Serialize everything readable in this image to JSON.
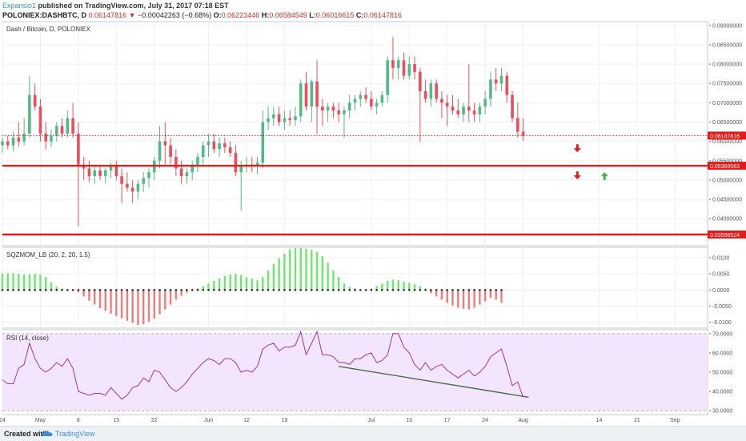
{
  "header": {
    "author": "Expansio1",
    "published": "published on TradingView.com, July 31, 2017 07:18 EST",
    "symbol": "POLONIEX:DASHBTC, D",
    "last": "0.06147816",
    "change": "−0.00042263 (−0.68%)",
    "o_label": "O:",
    "o": "0.06223446",
    "h_label": "H:",
    "h": "0.06584549",
    "l_label": "L:",
    "l": "0.06016615",
    "c_label": "C:",
    "c": "0.06147816"
  },
  "footer": {
    "created": "Created with",
    "brand": "TradingView"
  },
  "colors": {
    "up": "#53b987",
    "down": "#eb4d5c",
    "level": "#e31b1b",
    "rsi_fill": "#f3e5fc",
    "rsi_line": "#9c3a9c",
    "trend": "#4c6a4c",
    "mom_up": "#6ee76e",
    "mom_down": "#f07b7b"
  },
  "chart_data": [
    {
      "type": "candlestick",
      "title": "Dash / Bitcoin, D, POLONIEX",
      "ylim": [
        0.033,
        0.091
      ],
      "y_ticks": [
        "0.09000000",
        "0.08500000",
        "0.08000000",
        "0.07500000",
        "0.07000000",
        "0.06500000",
        "0.06000000",
        "0.05500000",
        "0.05000000",
        "0.04500000",
        "0.04000000"
      ],
      "y_tick_values": [
        0.09,
        0.085,
        0.08,
        0.075,
        0.07,
        0.065,
        0.06,
        0.055,
        0.05,
        0.045,
        0.04
      ],
      "x_ticks": [
        "24",
        "May",
        "8",
        "15",
        "22",
        "Jun",
        "12",
        "19",
        "Jul",
        "10",
        "17",
        "24",
        "Aug",
        "14",
        "21",
        "Sep"
      ],
      "x_tick_days": [
        0,
        7,
        14,
        21,
        28,
        38,
        45,
        52,
        68,
        75,
        82,
        89,
        96,
        110,
        117,
        124
      ],
      "x_range_days": [
        0,
        130
      ],
      "candles": [
        {
          "o": 0.059,
          "h": 0.061,
          "l": 0.057,
          "c": 0.06
        },
        {
          "o": 0.06,
          "h": 0.0615,
          "l": 0.058,
          "c": 0.059
        },
        {
          "o": 0.059,
          "h": 0.0625,
          "l": 0.0575,
          "c": 0.061
        },
        {
          "o": 0.061,
          "h": 0.065,
          "l": 0.0585,
          "c": 0.06
        },
        {
          "o": 0.06,
          "h": 0.066,
          "l": 0.059,
          "c": 0.062
        },
        {
          "o": 0.062,
          "h": 0.077,
          "l": 0.061,
          "c": 0.072
        },
        {
          "o": 0.072,
          "h": 0.075,
          "l": 0.068,
          "c": 0.069
        },
        {
          "o": 0.069,
          "h": 0.071,
          "l": 0.06,
          "c": 0.062
        },
        {
          "o": 0.062,
          "h": 0.065,
          "l": 0.058,
          "c": 0.06
        },
        {
          "o": 0.06,
          "h": 0.063,
          "l": 0.0585,
          "c": 0.0615
        },
        {
          "o": 0.0615,
          "h": 0.065,
          "l": 0.06,
          "c": 0.064
        },
        {
          "o": 0.064,
          "h": 0.066,
          "l": 0.061,
          "c": 0.062
        },
        {
          "o": 0.062,
          "h": 0.068,
          "l": 0.061,
          "c": 0.066
        },
        {
          "o": 0.066,
          "h": 0.07,
          "l": 0.061,
          "c": 0.062
        },
        {
          "o": 0.062,
          "h": 0.065,
          "l": 0.038,
          "c": 0.054
        },
        {
          "o": 0.054,
          "h": 0.056,
          "l": 0.05,
          "c": 0.053
        },
        {
          "o": 0.053,
          "h": 0.055,
          "l": 0.0495,
          "c": 0.051
        },
        {
          "o": 0.051,
          "h": 0.0535,
          "l": 0.049,
          "c": 0.0525
        },
        {
          "o": 0.0525,
          "h": 0.054,
          "l": 0.05,
          "c": 0.051
        },
        {
          "o": 0.051,
          "h": 0.053,
          "l": 0.049,
          "c": 0.0525
        },
        {
          "o": 0.0525,
          "h": 0.0545,
          "l": 0.0505,
          "c": 0.0535
        },
        {
          "o": 0.0535,
          "h": 0.055,
          "l": 0.05,
          "c": 0.051
        },
        {
          "o": 0.051,
          "h": 0.053,
          "l": 0.044,
          "c": 0.049
        },
        {
          "o": 0.049,
          "h": 0.052,
          "l": 0.047,
          "c": 0.048
        },
        {
          "o": 0.048,
          "h": 0.05,
          "l": 0.044,
          "c": 0.047
        },
        {
          "o": 0.047,
          "h": 0.05,
          "l": 0.045,
          "c": 0.049
        },
        {
          "o": 0.049,
          "h": 0.052,
          "l": 0.047,
          "c": 0.0505
        },
        {
          "o": 0.0505,
          "h": 0.053,
          "l": 0.048,
          "c": 0.052
        },
        {
          "o": 0.052,
          "h": 0.056,
          "l": 0.05,
          "c": 0.055
        },
        {
          "o": 0.055,
          "h": 0.064,
          "l": 0.053,
          "c": 0.06
        },
        {
          "o": 0.06,
          "h": 0.065,
          "l": 0.054,
          "c": 0.059
        },
        {
          "o": 0.059,
          "h": 0.061,
          "l": 0.054,
          "c": 0.056
        },
        {
          "o": 0.056,
          "h": 0.058,
          "l": 0.051,
          "c": 0.053
        },
        {
          "o": 0.053,
          "h": 0.055,
          "l": 0.049,
          "c": 0.051
        },
        {
          "o": 0.051,
          "h": 0.053,
          "l": 0.049,
          "c": 0.052
        },
        {
          "o": 0.052,
          "h": 0.055,
          "l": 0.05,
          "c": 0.054
        },
        {
          "o": 0.054,
          "h": 0.057,
          "l": 0.052,
          "c": 0.056
        },
        {
          "o": 0.056,
          "h": 0.06,
          "l": 0.054,
          "c": 0.059
        },
        {
          "o": 0.059,
          "h": 0.062,
          "l": 0.056,
          "c": 0.06
        },
        {
          "o": 0.06,
          "h": 0.062,
          "l": 0.057,
          "c": 0.058
        },
        {
          "o": 0.058,
          "h": 0.061,
          "l": 0.056,
          "c": 0.0595
        },
        {
          "o": 0.0595,
          "h": 0.061,
          "l": 0.057,
          "c": 0.0585
        },
        {
          "o": 0.0585,
          "h": 0.06,
          "l": 0.056,
          "c": 0.057
        },
        {
          "o": 0.057,
          "h": 0.059,
          "l": 0.051,
          "c": 0.052
        },
        {
          "o": 0.052,
          "h": 0.055,
          "l": 0.042,
          "c": 0.0535
        },
        {
          "o": 0.0535,
          "h": 0.056,
          "l": 0.052,
          "c": 0.054
        },
        {
          "o": 0.054,
          "h": 0.056,
          "l": 0.052,
          "c": 0.0535
        },
        {
          "o": 0.0535,
          "h": 0.056,
          "l": 0.0515,
          "c": 0.0545
        },
        {
          "o": 0.0545,
          "h": 0.068,
          "l": 0.053,
          "c": 0.065
        },
        {
          "o": 0.065,
          "h": 0.069,
          "l": 0.063,
          "c": 0.066
        },
        {
          "o": 0.066,
          "h": 0.069,
          "l": 0.064,
          "c": 0.067
        },
        {
          "o": 0.067,
          "h": 0.069,
          "l": 0.064,
          "c": 0.065
        },
        {
          "o": 0.065,
          "h": 0.068,
          "l": 0.063,
          "c": 0.066
        },
        {
          "o": 0.066,
          "h": 0.068,
          "l": 0.064,
          "c": 0.0655
        },
        {
          "o": 0.0655,
          "h": 0.069,
          "l": 0.064,
          "c": 0.0665
        },
        {
          "o": 0.0665,
          "h": 0.076,
          "l": 0.065,
          "c": 0.075
        },
        {
          "o": 0.075,
          "h": 0.078,
          "l": 0.068,
          "c": 0.069
        },
        {
          "o": 0.069,
          "h": 0.076,
          "l": 0.065,
          "c": 0.0755
        },
        {
          "o": 0.0755,
          "h": 0.081,
          "l": 0.062,
          "c": 0.069
        },
        {
          "o": 0.069,
          "h": 0.071,
          "l": 0.064,
          "c": 0.068
        },
        {
          "o": 0.068,
          "h": 0.07,
          "l": 0.065,
          "c": 0.069
        },
        {
          "o": 0.069,
          "h": 0.07,
          "l": 0.066,
          "c": 0.068
        },
        {
          "o": 0.068,
          "h": 0.07,
          "l": 0.065,
          "c": 0.067
        },
        {
          "o": 0.067,
          "h": 0.069,
          "l": 0.061,
          "c": 0.068
        },
        {
          "o": 0.068,
          "h": 0.072,
          "l": 0.066,
          "c": 0.07
        },
        {
          "o": 0.07,
          "h": 0.072,
          "l": 0.068,
          "c": 0.071
        },
        {
          "o": 0.071,
          "h": 0.073,
          "l": 0.069,
          "c": 0.072
        },
        {
          "o": 0.072,
          "h": 0.074,
          "l": 0.07,
          "c": 0.071
        },
        {
          "o": 0.071,
          "h": 0.073,
          "l": 0.068,
          "c": 0.069
        },
        {
          "o": 0.069,
          "h": 0.071,
          "l": 0.067,
          "c": 0.07
        },
        {
          "o": 0.07,
          "h": 0.073,
          "l": 0.069,
          "c": 0.072
        },
        {
          "o": 0.072,
          "h": 0.082,
          "l": 0.07,
          "c": 0.081
        },
        {
          "o": 0.081,
          "h": 0.087,
          "l": 0.076,
          "c": 0.079
        },
        {
          "o": 0.079,
          "h": 0.082,
          "l": 0.076,
          "c": 0.081
        },
        {
          "o": 0.081,
          "h": 0.083,
          "l": 0.076,
          "c": 0.077
        },
        {
          "o": 0.077,
          "h": 0.082,
          "l": 0.076,
          "c": 0.08
        },
        {
          "o": 0.08,
          "h": 0.082,
          "l": 0.076,
          "c": 0.078
        },
        {
          "o": 0.078,
          "h": 0.079,
          "l": 0.06,
          "c": 0.073
        },
        {
          "o": 0.073,
          "h": 0.076,
          "l": 0.07,
          "c": 0.071
        },
        {
          "o": 0.071,
          "h": 0.076,
          "l": 0.069,
          "c": 0.075
        },
        {
          "o": 0.075,
          "h": 0.076,
          "l": 0.07,
          "c": 0.071
        },
        {
          "o": 0.071,
          "h": 0.073,
          "l": 0.066,
          "c": 0.07
        },
        {
          "o": 0.07,
          "h": 0.072,
          "l": 0.064,
          "c": 0.069
        },
        {
          "o": 0.069,
          "h": 0.072,
          "l": 0.067,
          "c": 0.068
        },
        {
          "o": 0.068,
          "h": 0.071,
          "l": 0.066,
          "c": 0.067
        },
        {
          "o": 0.067,
          "h": 0.07,
          "l": 0.065,
          "c": 0.069
        },
        {
          "o": 0.069,
          "h": 0.08,
          "l": 0.065,
          "c": 0.068
        },
        {
          "o": 0.068,
          "h": 0.07,
          "l": 0.065,
          "c": 0.067
        },
        {
          "o": 0.067,
          "h": 0.07,
          "l": 0.065,
          "c": 0.069
        },
        {
          "o": 0.069,
          "h": 0.073,
          "l": 0.067,
          "c": 0.071
        },
        {
          "o": 0.071,
          "h": 0.078,
          "l": 0.069,
          "c": 0.076
        },
        {
          "o": 0.076,
          "h": 0.079,
          "l": 0.073,
          "c": 0.075
        },
        {
          "o": 0.075,
          "h": 0.079,
          "l": 0.073,
          "c": 0.077
        },
        {
          "o": 0.077,
          "h": 0.078,
          "l": 0.07,
          "c": 0.072
        },
        {
          "o": 0.072,
          "h": 0.073,
          "l": 0.065,
          "c": 0.066
        },
        {
          "o": 0.066,
          "h": 0.07,
          "l": 0.061,
          "c": 0.0625
        },
        {
          "o": 0.0625,
          "h": 0.066,
          "l": 0.0602,
          "c": 0.0615
        }
      ],
      "horizontal_levels": [
        {
          "value": 0.0615,
          "style": "dotted",
          "label": "0.06147816"
        },
        {
          "value": 0.0537,
          "style": "solid",
          "label": "0.05369563"
        },
        {
          "value": 0.0359,
          "style": "solid",
          "label": "0.03596524"
        }
      ],
      "arrows": [
        {
          "day": 106,
          "price": 0.058,
          "direction": "down",
          "color": "#e31b1b"
        },
        {
          "day": 106,
          "price": 0.051,
          "direction": "down",
          "color": "#e31b1b"
        },
        {
          "day": 111,
          "price": 0.0512,
          "direction": "up",
          "color": "#4caf50"
        }
      ]
    },
    {
      "type": "bar",
      "title": "SQZMOM_LB (20, 2, 20, 1.5)",
      "ylim": [
        -0.0118,
        0.0132
      ],
      "y_ticks": [
        "0.0100",
        "0.0050",
        "0.0000",
        "-0.0050",
        "-0.0100"
      ],
      "y_tick_values": [
        0.01,
        0.005,
        0,
        -0.005,
        -0.01
      ],
      "values": [
        0.005,
        0.0052,
        0.0052,
        0.005,
        0.0048,
        0.0049,
        0.005,
        0.0048,
        0.004,
        0.0025,
        0.001,
        0.0005,
        0.0,
        0.0,
        -0.0007,
        -0.002,
        -0.0033,
        -0.0045,
        -0.0056,
        -0.0065,
        -0.0073,
        -0.0081,
        -0.0088,
        -0.0095,
        -0.0102,
        -0.0108,
        -0.0106,
        -0.0098,
        -0.0088,
        -0.0075,
        -0.006,
        -0.0045,
        -0.003,
        -0.0018,
        -0.0008,
        0.0,
        0.0005,
        0.0012,
        0.002,
        0.0028,
        0.0036,
        0.0044,
        0.0048,
        0.005,
        0.0046,
        0.004,
        0.0035,
        0.003,
        0.004,
        0.006,
        0.008,
        0.0098,
        0.0112,
        0.0126,
        0.013,
        0.013,
        0.0128,
        0.0125,
        0.0118,
        0.0105,
        0.0085,
        0.006,
        0.004,
        0.002,
        0.001,
        0.0005,
        0.0,
        -0.0003,
        0.0005,
        0.0012,
        0.002,
        0.0028,
        0.0032,
        0.003,
        0.0026,
        0.0022,
        0.0018,
        0.0012,
        0.0005,
        -0.001,
        -0.002,
        -0.003,
        -0.004,
        -0.0048,
        -0.0055,
        -0.0058,
        -0.006,
        -0.0055,
        -0.0045,
        -0.0035,
        -0.0025,
        -0.003,
        -0.004
      ],
      "signal_dots": true
    },
    {
      "type": "line",
      "title": "RSI (14, close)",
      "ylim": [
        28,
        72
      ],
      "band": [
        30,
        70
      ],
      "y_ticks": [
        "70.0000",
        "60.0000",
        "50.0000",
        "40.0000",
        "30.0000"
      ],
      "y_tick_values": [
        70,
        60,
        50,
        40,
        30
      ],
      "values": [
        46,
        44,
        44,
        52,
        54,
        65,
        57,
        52,
        50,
        52,
        55,
        53,
        57,
        52,
        40,
        39,
        38,
        39,
        39,
        38,
        42,
        39,
        36,
        38,
        42,
        43,
        47,
        45,
        51,
        50,
        46,
        42,
        40,
        42,
        45,
        49,
        52,
        55,
        57,
        56,
        54,
        57,
        57,
        55,
        50,
        51,
        50,
        53,
        62,
        64,
        65,
        61,
        63,
        63,
        64,
        71,
        59,
        65,
        71,
        59,
        59,
        58,
        55,
        55,
        54,
        57,
        57,
        59,
        60,
        55,
        56,
        59,
        70,
        70,
        63,
        60,
        54,
        51,
        55,
        51,
        53,
        54,
        51,
        49,
        47,
        49,
        51,
        48,
        50,
        53,
        58,
        60,
        62,
        53,
        43,
        45,
        37
      ],
      "trendline": [
        {
          "day": 62,
          "value": 53
        },
        {
          "day": 97,
          "value": 37
        }
      ]
    }
  ]
}
